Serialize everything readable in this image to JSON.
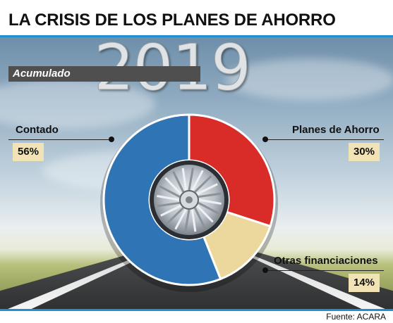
{
  "header": {
    "title": "LA CRISIS DE LOS PLANES DE AHORRO"
  },
  "year": "2019",
  "period_label": "Acumulado",
  "source": "Fuente: ACARA",
  "colors": {
    "accent_rule": "#1f8fd2",
    "contado": "#2f75b5",
    "planes": "#d92b27",
    "otras": "#ecd89c",
    "badge": "#f1e3b5"
  },
  "chart_data": {
    "type": "pie",
    "categories": [
      "Planes de Ahorro",
      "Otras financiaciones",
      "Contado"
    ],
    "values": [
      30,
      14,
      56
    ],
    "labels": [
      "30%",
      "14%",
      "56%"
    ]
  }
}
